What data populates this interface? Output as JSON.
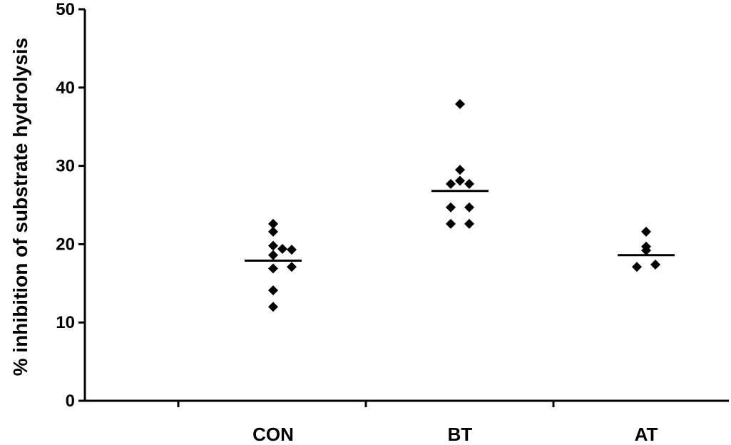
{
  "chart_data": {
    "type": "scatter",
    "title": "",
    "xlabel": "",
    "ylabel": "% inhibition of substrate hydrolysis",
    "ylim": [
      0,
      50
    ],
    "y_ticks": [
      "0",
      "10",
      "20",
      "30",
      "40",
      "50"
    ],
    "categories": [
      "CON",
      "BT",
      "AT"
    ],
    "grid": false,
    "marker_color": "#000000",
    "groups": [
      {
        "category": "CON",
        "mean": 17.9,
        "points": [
          {
            "offset": 0,
            "y": 22.6
          },
          {
            "offset": 0,
            "y": 21.6
          },
          {
            "offset": 0,
            "y": 19.8
          },
          {
            "offset": 1,
            "y": 19.4
          },
          {
            "offset": 2,
            "y": 19.3
          },
          {
            "offset": 0,
            "y": 18.6
          },
          {
            "offset": 0,
            "y": 16.9
          },
          {
            "offset": 2,
            "y": 17.1
          },
          {
            "offset": 0,
            "y": 14.1
          },
          {
            "offset": 0,
            "y": 12.0
          }
        ]
      },
      {
        "category": "BT",
        "mean": 26.8,
        "points": [
          {
            "offset": 0,
            "y": 37.9
          },
          {
            "offset": 0,
            "y": 29.5
          },
          {
            "offset": 0,
            "y": 28.1
          },
          {
            "offset": -1,
            "y": 27.7
          },
          {
            "offset": 1,
            "y": 27.7
          },
          {
            "offset": -1,
            "y": 24.7
          },
          {
            "offset": 1,
            "y": 24.7
          },
          {
            "offset": -1,
            "y": 22.6
          },
          {
            "offset": 1,
            "y": 22.6
          }
        ]
      },
      {
        "category": "AT",
        "mean": 18.6,
        "points": [
          {
            "offset": 0,
            "y": 21.6
          },
          {
            "offset": 0,
            "y": 19.7
          },
          {
            "offset": 0,
            "y": 19.2
          },
          {
            "offset": -1,
            "y": 17.1
          },
          {
            "offset": 1,
            "y": 17.4
          }
        ]
      }
    ]
  }
}
